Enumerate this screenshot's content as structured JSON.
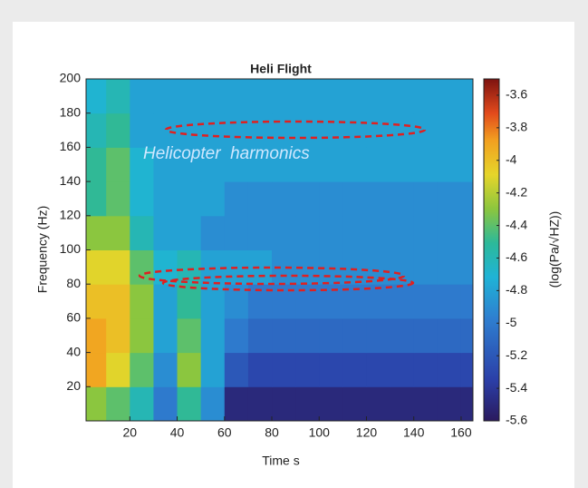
{
  "chart_data": {
    "type": "heatmap",
    "title": "Heli Flight",
    "x_label": "Time s",
    "y_label": "Frequency (Hz)",
    "colorbar_label": "(log(Pa/√HZ))",
    "annotation": "Helicopter  harmonics",
    "x_edges": [
      1.5,
      10,
      20,
      30,
      40,
      50,
      60,
      70,
      80,
      90,
      100,
      110,
      120,
      130,
      140,
      150,
      160,
      165
    ],
    "y_edges": [
      0,
      20,
      40,
      60,
      80,
      100,
      120,
      140,
      160,
      180,
      200
    ],
    "z": [
      [
        -4.3,
        -4.4,
        -4.6,
        -5.0,
        -4.5,
        -4.9,
        -5.5,
        -5.5,
        -5.5,
        -5.5,
        -5.5,
        -5.5,
        -5.5,
        -5.5,
        -5.5,
        -5.5,
        -5.5
      ],
      [
        -3.9,
        -4.1,
        -4.4,
        -4.9,
        -4.3,
        -4.8,
        -5.2,
        -5.3,
        -5.3,
        -5.3,
        -5.3,
        -5.3,
        -5.3,
        -5.3,
        -5.3,
        -5.3,
        -5.3
      ],
      [
        -3.9,
        -4.0,
        -4.3,
        -4.8,
        -4.4,
        -4.8,
        -5.0,
        -5.1,
        -5.1,
        -5.1,
        -5.1,
        -5.1,
        -5.1,
        -5.1,
        -5.1,
        -5.1,
        -5.1
      ],
      [
        -4.0,
        -4.0,
        -4.3,
        -4.8,
        -4.5,
        -4.8,
        -4.9,
        -5.0,
        -5.0,
        -5.0,
        -5.0,
        -5.0,
        -5.0,
        -5.0,
        -5.0,
        -5.0,
        -5.0
      ],
      [
        -4.1,
        -4.1,
        -4.4,
        -4.7,
        -4.6,
        -4.8,
        -4.8,
        -4.8,
        -4.9,
        -4.9,
        -4.9,
        -4.9,
        -4.9,
        -4.9,
        -4.9,
        -4.9,
        -4.9
      ],
      [
        -4.3,
        -4.3,
        -4.6,
        -4.8,
        -4.8,
        -4.9,
        -4.9,
        -4.9,
        -4.9,
        -4.9,
        -4.9,
        -4.9,
        -4.9,
        -4.9,
        -4.9,
        -4.9,
        -4.9
      ],
      [
        -4.5,
        -4.4,
        -4.7,
        -4.8,
        -4.8,
        -4.8,
        -4.9,
        -4.9,
        -4.9,
        -4.9,
        -4.9,
        -4.9,
        -4.9,
        -4.9,
        -4.9,
        -4.9,
        -4.9
      ],
      [
        -4.5,
        -4.4,
        -4.7,
        -4.8,
        -4.8,
        -4.8,
        -4.8,
        -4.8,
        -4.8,
        -4.8,
        -4.8,
        -4.8,
        -4.8,
        -4.8,
        -4.8,
        -4.8,
        -4.8
      ],
      [
        -4.6,
        -4.5,
        -4.8,
        -4.8,
        -4.8,
        -4.8,
        -4.8,
        -4.8,
        -4.8,
        -4.8,
        -4.8,
        -4.8,
        -4.8,
        -4.8,
        -4.8,
        -4.8,
        -4.8
      ],
      [
        -4.7,
        -4.6,
        -4.8,
        -4.8,
        -4.8,
        -4.8,
        -4.8,
        -4.8,
        -4.8,
        -4.8,
        -4.8,
        -4.8,
        -4.8,
        -4.8,
        -4.8,
        -4.8,
        -4.8
      ]
    ],
    "xlim": [
      1.5,
      165
    ],
    "xticks": [
      20,
      40,
      60,
      80,
      100,
      120,
      140,
      160
    ],
    "ylim": [
      0,
      200
    ],
    "yticks": [
      20,
      40,
      60,
      80,
      100,
      120,
      140,
      160,
      180,
      200
    ],
    "clim": [
      -5.6,
      -3.5
    ],
    "cticks": [
      -3.6,
      -3.8,
      -4,
      -4.2,
      -4.4,
      -4.6,
      -4.8,
      -5,
      -5.2,
      -5.4,
      -5.6
    ]
  }
}
